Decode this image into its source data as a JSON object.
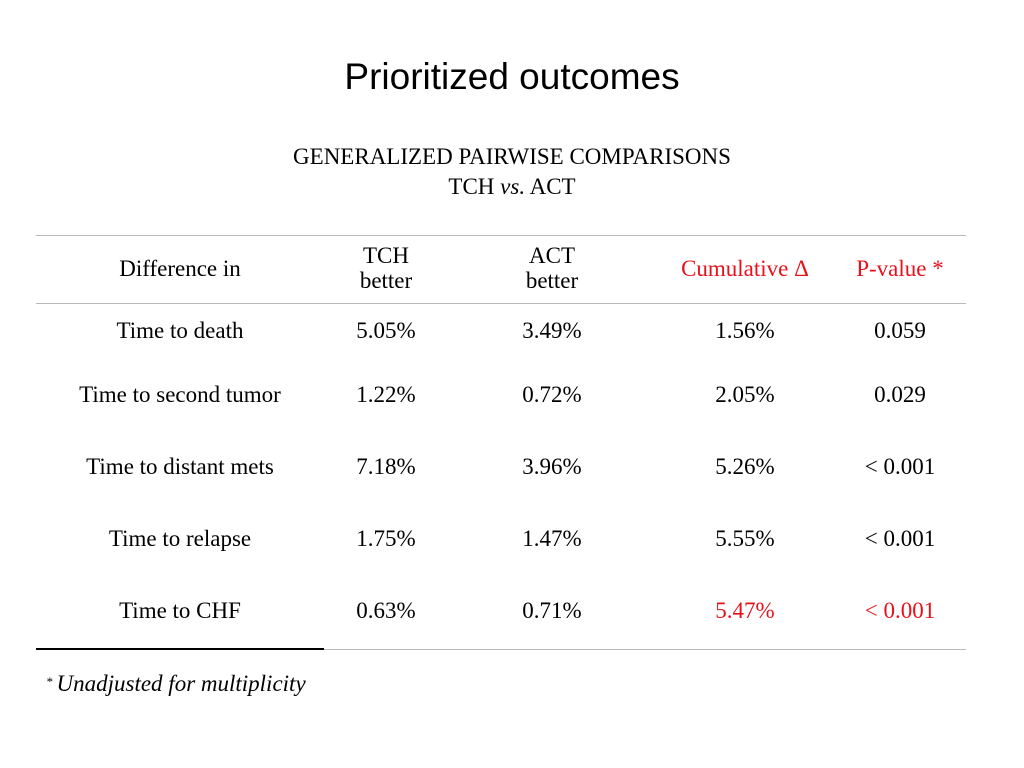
{
  "title": "Prioritized outcomes",
  "subtitle": {
    "line1": "GENERALIZED PAIRWISE COMPARISONS",
    "line2_a": "TCH",
    "line2_vs": "vs.",
    "line2_b": "ACT"
  },
  "table": {
    "headers": {
      "difference": "Difference in",
      "tch_line1": "TCH",
      "tch_line2": "better",
      "act_line1": "ACT",
      "act_line2": "better",
      "cumulative": "Cumulative Δ",
      "pvalue": "P-value *"
    },
    "rows": [
      {
        "outcome": "Time to death",
        "tch": "5.05%",
        "act": "3.49%",
        "cumulative": "1.56%",
        "pvalue": "0.059"
      },
      {
        "outcome": "Time to second tumor",
        "tch": "1.22%",
        "act": "0.72%",
        "cumulative": "2.05%",
        "pvalue": "0.029"
      },
      {
        "outcome": "Time to distant mets",
        "tch": "7.18%",
        "act": "3.96%",
        "cumulative": "5.26%",
        "pvalue": "< 0.001"
      },
      {
        "outcome": "Time to relapse",
        "tch": "1.75%",
        "act": "1.47%",
        "cumulative": "5.55%",
        "pvalue": "< 0.001"
      },
      {
        "outcome": "Time to CHF",
        "tch": "0.63%",
        "act": "0.71%",
        "cumulative": "5.47%",
        "pvalue": "< 0.001"
      }
    ]
  },
  "footnote": {
    "marker": "*",
    "text": "Unadjusted for multiplicity"
  },
  "colors": {
    "accent_red": "#e8111a",
    "rule_gray": "#b9b9b9",
    "text": "#000000"
  }
}
